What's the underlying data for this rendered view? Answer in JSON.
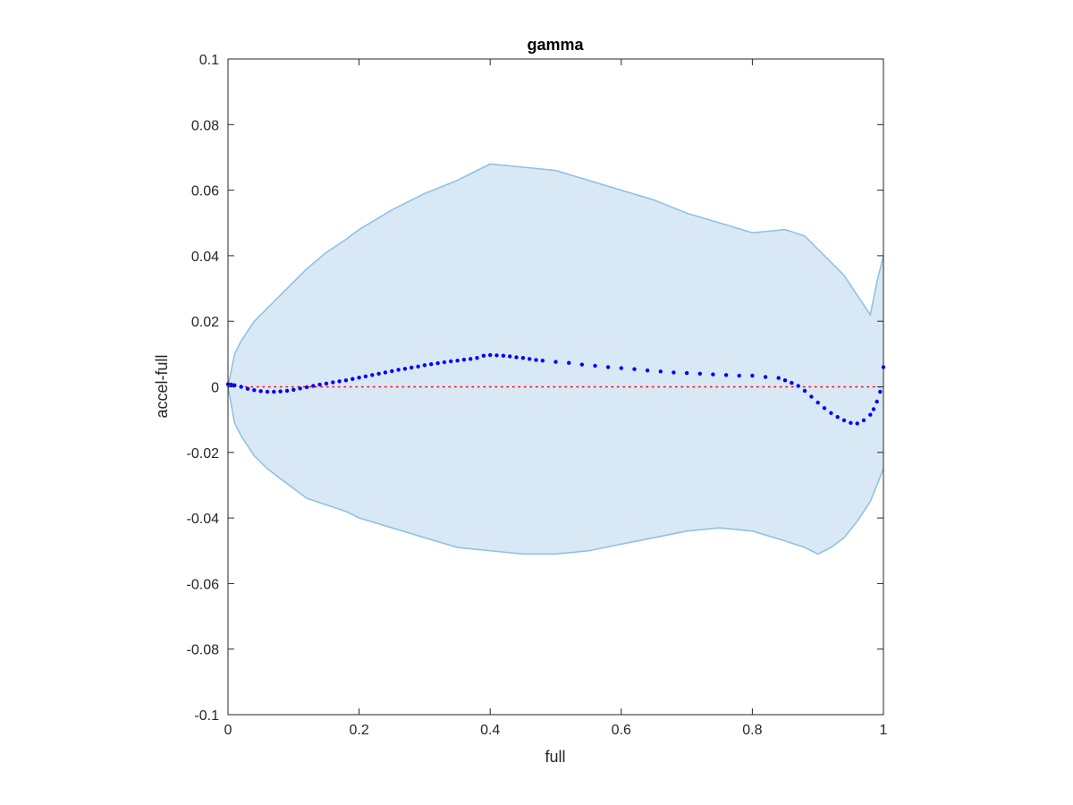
{
  "chart_data": {
    "type": "scatter",
    "title": "gamma",
    "xlabel": "full",
    "ylabel": "accel-full",
    "xlim": [
      0,
      1
    ],
    "ylim": [
      -0.1,
      0.1
    ],
    "xticks": [
      0,
      0.2,
      0.4,
      0.6,
      0.8,
      1
    ],
    "xtick_labels": [
      "0",
      "0.2",
      "0.4",
      "0.6",
      "0.8",
      "1"
    ],
    "yticks": [
      -0.1,
      -0.08,
      -0.06,
      -0.04,
      -0.02,
      0,
      0.02,
      0.04,
      0.06,
      0.08,
      0.1
    ],
    "ytick_labels": [
      "-0.1",
      "-0.08",
      "-0.06",
      "-0.04",
      "-0.02",
      "0",
      "0.02",
      "0.04",
      "0.06",
      "0.08",
      "0.1"
    ],
    "grid": false,
    "legend": "none",
    "reference_line": {
      "y": 0,
      "style": "dotted",
      "color": "#ff0000"
    },
    "band": {
      "color_fill": "#d9e8f5",
      "color_edge": "#8bbfe2",
      "x": [
        0,
        0.01,
        0.02,
        0.04,
        0.06,
        0.08,
        0.1,
        0.12,
        0.15,
        0.18,
        0.2,
        0.25,
        0.3,
        0.35,
        0.4,
        0.45,
        0.5,
        0.55,
        0.6,
        0.65,
        0.7,
        0.75,
        0.8,
        0.85,
        0.88,
        0.9,
        0.92,
        0.94,
        0.96,
        0.98,
        0.99,
        1
      ],
      "upper": [
        0,
        0.01,
        0.014,
        0.02,
        0.024,
        0.028,
        0.032,
        0.036,
        0.041,
        0.045,
        0.048,
        0.054,
        0.059,
        0.063,
        0.068,
        0.067,
        0.066,
        0.063,
        0.06,
        0.057,
        0.053,
        0.05,
        0.047,
        0.048,
        0.046,
        0.042,
        0.038,
        0.034,
        0.028,
        0.022,
        0.032,
        0.04
      ],
      "lower": [
        0,
        -0.011,
        -0.015,
        -0.021,
        -0.025,
        -0.028,
        -0.031,
        -0.034,
        -0.036,
        -0.038,
        -0.04,
        -0.043,
        -0.046,
        -0.049,
        -0.05,
        -0.051,
        -0.051,
        -0.05,
        -0.048,
        -0.046,
        -0.044,
        -0.043,
        -0.044,
        -0.047,
        -0.049,
        -0.051,
        -0.049,
        -0.046,
        -0.041,
        -0.035,
        -0.03,
        -0.025
      ]
    },
    "series": [
      {
        "color": "#0000ff",
        "x": [
          0,
          0.005,
          0.01,
          0.02,
          0.03,
          0.04,
          0.05,
          0.06,
          0.07,
          0.08,
          0.09,
          0.1,
          0.11,
          0.12,
          0.13,
          0.14,
          0.15,
          0.16,
          0.17,
          0.18,
          0.19,
          0.2,
          0.21,
          0.22,
          0.23,
          0.24,
          0.25,
          0.26,
          0.27,
          0.28,
          0.29,
          0.3,
          0.31,
          0.32,
          0.33,
          0.34,
          0.35,
          0.36,
          0.37,
          0.38,
          0.39,
          0.4,
          0.41,
          0.42,
          0.43,
          0.44,
          0.45,
          0.46,
          0.47,
          0.48,
          0.5,
          0.52,
          0.54,
          0.56,
          0.58,
          0.6,
          0.62,
          0.64,
          0.66,
          0.68,
          0.7,
          0.72,
          0.74,
          0.76,
          0.78,
          0.8,
          0.82,
          0.84,
          0.85,
          0.86,
          0.87,
          0.88,
          0.89,
          0.9,
          0.91,
          0.92,
          0.93,
          0.94,
          0.95,
          0.96,
          0.97,
          0.98,
          0.985,
          0.99,
          0.995,
          1
        ],
        "y": [
          0.0008,
          0.0007,
          0.0005,
          0,
          -0.0006,
          -0.001,
          -0.0013,
          -0.0015,
          -0.0015,
          -0.0014,
          -0.0012,
          -0.0009,
          -0.0005,
          -0.0001,
          0.0003,
          0.0007,
          0.001,
          0.0014,
          0.0017,
          0.002,
          0.0024,
          0.0028,
          0.0032,
          0.0036,
          0.004,
          0.0044,
          0.0048,
          0.0052,
          0.0055,
          0.0059,
          0.0062,
          0.0066,
          0.0069,
          0.0072,
          0.0075,
          0.0078,
          0.008,
          0.0083,
          0.0085,
          0.0088,
          0.0095,
          0.0097,
          0.0096,
          0.0095,
          0.0093,
          0.009,
          0.0088,
          0.0085,
          0.0082,
          0.008,
          0.0076,
          0.0073,
          0.0068,
          0.0064,
          0.006,
          0.0057,
          0.0054,
          0.005,
          0.0047,
          0.0044,
          0.0042,
          0.004,
          0.0038,
          0.0036,
          0.0034,
          0.0034,
          0.003,
          0.0027,
          0.002,
          0.0012,
          0.0003,
          -0.0012,
          -0.003,
          -0.0048,
          -0.0065,
          -0.008,
          -0.0092,
          -0.0102,
          -0.011,
          -0.0112,
          -0.0102,
          -0.0085,
          -0.0068,
          -0.0045,
          -0.0015,
          0.006
        ]
      }
    ]
  }
}
